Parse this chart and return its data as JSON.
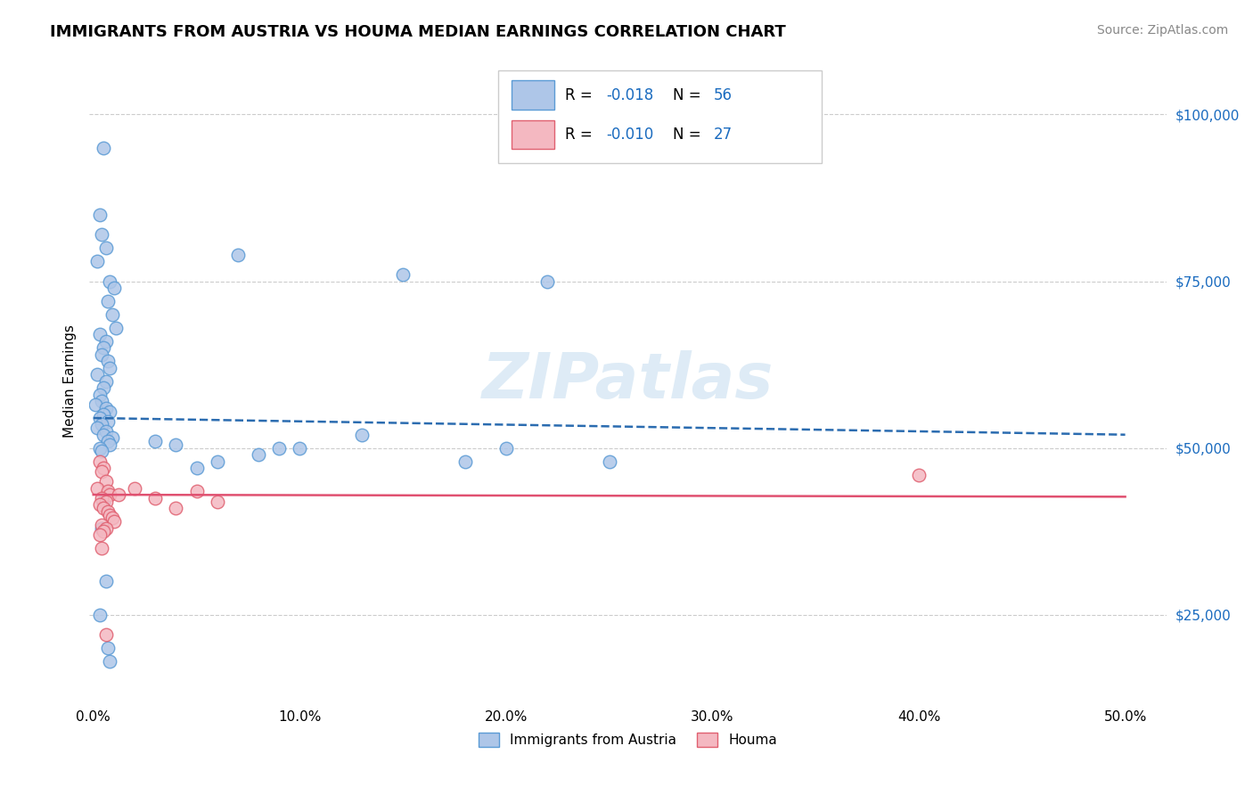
{
  "title": "IMMIGRANTS FROM AUSTRIA VS HOUMA MEDIAN EARNINGS CORRELATION CHART",
  "source_text": "Source: ZipAtlas.com",
  "ylabel": "Median Earnings",
  "ytick_labels": [
    "$25,000",
    "$50,000",
    "$75,000",
    "$100,000"
  ],
  "ytick_vals": [
    25000,
    50000,
    75000,
    100000
  ],
  "ylim": [
    12000,
    108000
  ],
  "xlim": [
    -0.002,
    0.52
  ],
  "xtick_vals": [
    0.0,
    0.1,
    0.2,
    0.3,
    0.4,
    0.5
  ],
  "xtick_labels": [
    "0.0%",
    "10.0%",
    "20.0%",
    "30.0%",
    "40.0%",
    "50.0%"
  ],
  "blue_scatter_x": [
    0.005,
    0.003,
    0.004,
    0.006,
    0.002,
    0.008,
    0.01,
    0.007,
    0.009,
    0.011,
    0.003,
    0.006,
    0.005,
    0.004,
    0.007,
    0.008,
    0.002,
    0.006,
    0.005,
    0.003,
    0.004,
    0.001,
    0.006,
    0.008,
    0.005,
    0.003,
    0.007,
    0.004,
    0.002,
    0.006,
    0.005,
    0.009,
    0.007,
    0.008,
    0.003,
    0.004,
    0.06,
    0.05,
    0.07,
    0.04,
    0.03,
    0.08,
    0.09,
    0.1,
    0.15,
    0.13,
    0.2,
    0.18,
    0.22,
    0.25,
    0.005,
    0.004,
    0.006,
    0.003,
    0.007,
    0.008
  ],
  "blue_scatter_y": [
    95000,
    85000,
    82000,
    80000,
    78000,
    75000,
    74000,
    72000,
    70000,
    68000,
    67000,
    66000,
    65000,
    64000,
    63000,
    62000,
    61000,
    60000,
    59000,
    58000,
    57000,
    56500,
    56000,
    55500,
    55000,
    54500,
    54000,
    53500,
    53000,
    52500,
    52000,
    51500,
    51000,
    50500,
    50000,
    49500,
    48000,
    47000,
    79000,
    50500,
    51000,
    49000,
    50000,
    50000,
    76000,
    52000,
    50000,
    48000,
    75000,
    48000,
    42000,
    38000,
    30000,
    25000,
    20000,
    18000
  ],
  "pink_scatter_x": [
    0.003,
    0.005,
    0.004,
    0.006,
    0.002,
    0.007,
    0.008,
    0.004,
    0.006,
    0.003,
    0.005,
    0.007,
    0.008,
    0.009,
    0.01,
    0.004,
    0.006,
    0.005,
    0.003,
    0.012,
    0.02,
    0.03,
    0.04,
    0.05,
    0.06,
    0.4,
    0.004,
    0.006
  ],
  "pink_scatter_y": [
    48000,
    47000,
    46500,
    45000,
    44000,
    43500,
    43000,
    42500,
    42000,
    41500,
    41000,
    40500,
    40000,
    39500,
    39000,
    38500,
    38000,
    37500,
    37000,
    43000,
    44000,
    42500,
    41000,
    43500,
    42000,
    46000,
    35000,
    22000
  ],
  "blue_line_x": [
    0.0,
    0.5
  ],
  "blue_line_y": [
    54500,
    52000
  ],
  "pink_line_x": [
    0.0,
    0.5
  ],
  "pink_line_y": [
    43000,
    42700
  ],
  "blue_line_color": "#2b6cb0",
  "pink_line_color": "#e05070",
  "blue_scatter_color": "#aec6e8",
  "blue_scatter_edge": "#5b9bd5",
  "pink_scatter_color": "#f4b8c1",
  "pink_scatter_edge": "#e06070",
  "grid_color": "#cccccc",
  "background_color": "#ffffff",
  "title_fontsize": 13,
  "axis_label_fontsize": 11,
  "tick_fontsize": 11,
  "source_fontsize": 10,
  "source_color": "#888888",
  "ytick_color": "#1a6bbf",
  "watermark_color": "#c8dff0",
  "watermark_alpha": 0.6
}
